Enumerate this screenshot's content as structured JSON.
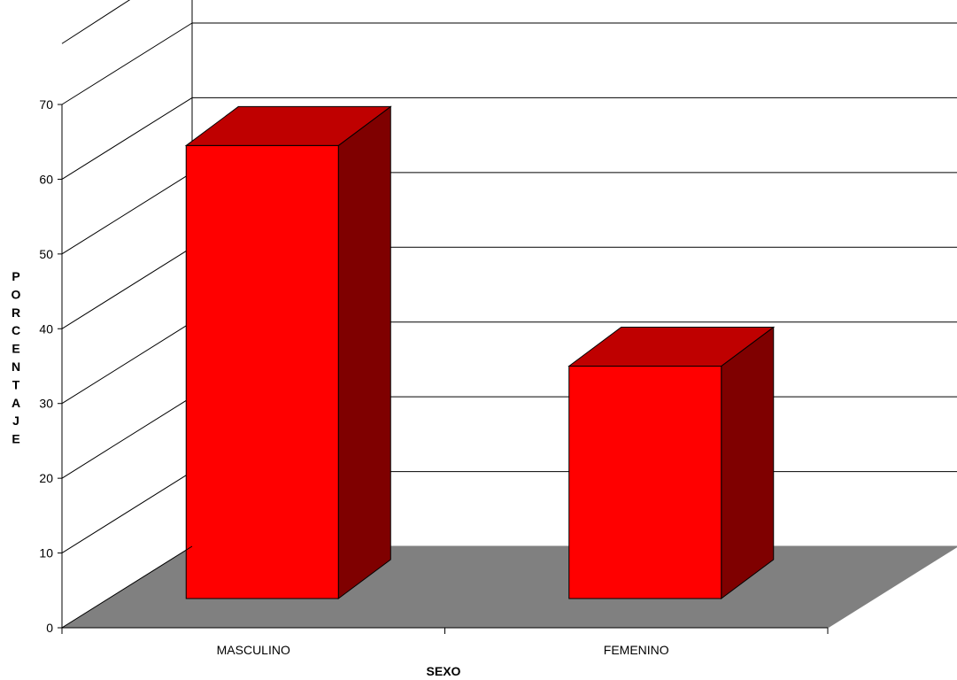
{
  "chart_data": {
    "type": "bar",
    "categories": [
      "MASCULINO",
      "FEMENINO"
    ],
    "values": [
      64.5,
      35
    ],
    "xlabel": "SEXO",
    "ylabel": "PORCENTAJE",
    "ylim": [
      0,
      70
    ],
    "yticks": [
      0,
      10,
      20,
      30,
      40,
      50,
      60,
      70
    ],
    "grid": true,
    "colors": {
      "bar_front": "#ff0000",
      "bar_top": "#bf0000",
      "bar_side": "#7f0000",
      "floor": "#808080",
      "grid": "#000000"
    }
  }
}
